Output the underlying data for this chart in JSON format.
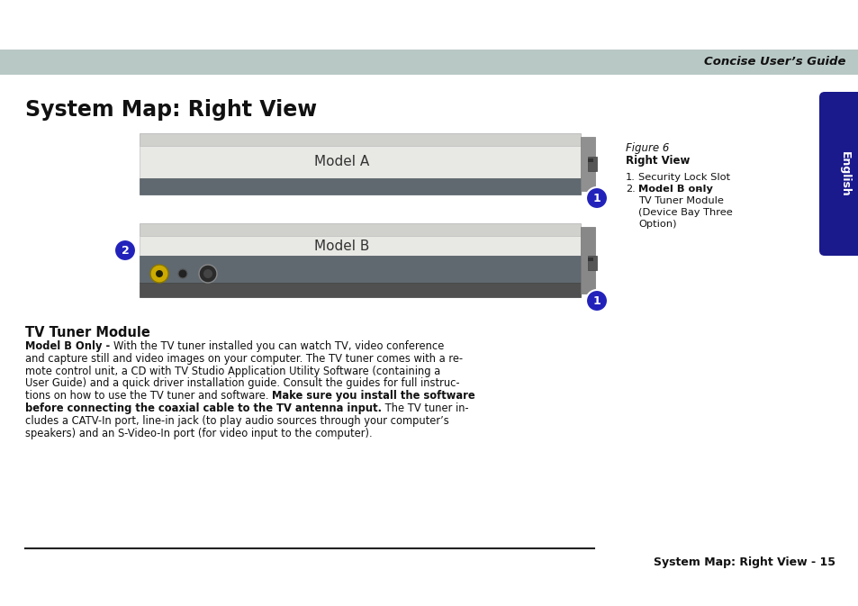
{
  "title": "System Map: Right View",
  "header_text": "Concise User’s Guide",
  "header_bg": "#b8c8c5",
  "tab_color": "#1a1a8c",
  "tab_text": "English",
  "figure_label": "Figure 6",
  "figure_sublabel": "Right View",
  "model_a_label": "Model A",
  "model_b_label": "Model B",
  "section_title": "TV Tuner Module",
  "footer_text": "System Map: Right View - 15",
  "footer_line_color": "#222222",
  "bg_color": "#ffffff",
  "circle_color": "#2222bb",
  "circle_text_color": "#ffffff",
  "legend_1": "Security Lock Slot",
  "legend_2_bold": "Model B only",
  "legend_2_rest": " -",
  "legend_2_line2": "TV Tuner Module",
  "legend_2_line3": "(Device Bay Three",
  "legend_2_line4": "Option)",
  "body_line1_bold": "Model B Only - ",
  "body_line1_rest": "With the TV tuner installed you can watch TV, video conference",
  "body_line2": "and capture still and video images on your computer. The TV tuner comes with a re-",
  "body_line3": "mote control unit, a CD with TV Studio Application Utility Software (containing a",
  "body_line4": "User Guide) and a quick driver installation guide. Consult the guides for full instruc-",
  "body_line5_rest": "tions on how to use the TV tuner and software. ",
  "body_line5_bold": "Make sure you install the software",
  "body_line6_bold": "before connecting the coaxial cable to the TV antenna input.",
  "body_line6_rest": " The TV tuner in-",
  "body_line7": "cludes a CATV-In port, line-in jack (to play audio sources through your computer’s",
  "body_line8": "speakers) and an S-Video-In port (for video input to the computer)."
}
